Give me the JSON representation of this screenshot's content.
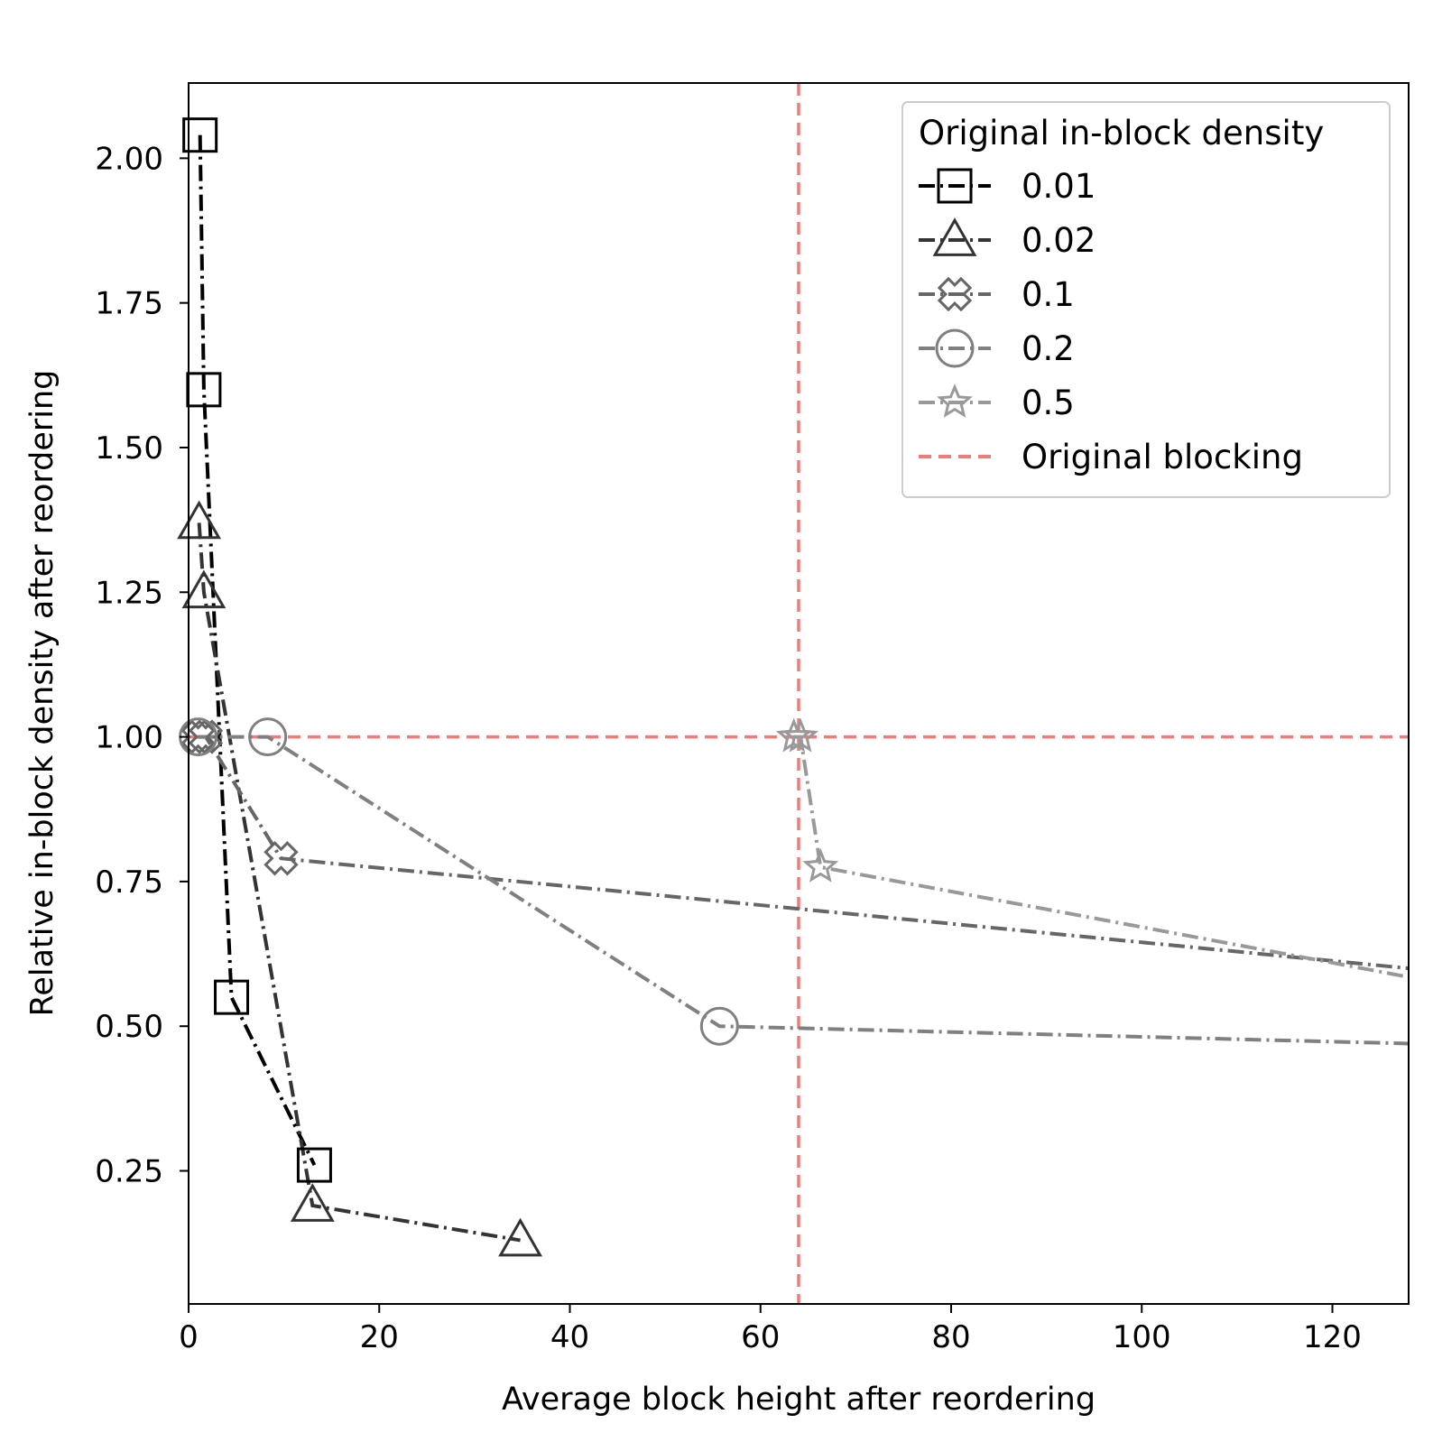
{
  "chart_data": {
    "type": "line",
    "title": "",
    "xlabel": "Average block height after reordering",
    "ylabel": "Relative in-block density after reordering",
    "xlim": [
      0,
      128
    ],
    "ylim": [
      0.02,
      2.13
    ],
    "x_ticks": [
      "0",
      "20",
      "40",
      "60",
      "80",
      "100",
      "120"
    ],
    "x_tick_values": [
      0,
      20,
      40,
      60,
      80,
      100,
      120
    ],
    "y_ticks": [
      "0.25",
      "0.50",
      "0.75",
      "1.00",
      "1.25",
      "1.50",
      "1.75",
      "2.00"
    ],
    "y_tick_values": [
      0.25,
      0.5,
      0.75,
      1.0,
      1.25,
      1.5,
      1.75,
      2.0
    ],
    "grid": false,
    "legend": {
      "title": "Original in-block density",
      "placement": "upper right"
    },
    "series": [
      {
        "name": "0.01",
        "color": "#000000",
        "marker": "square",
        "linestyle": "dashdot",
        "x": [
          1.2,
          1.6,
          4.5,
          13.2
        ],
        "y": [
          2.04,
          1.6,
          0.55,
          0.26
        ]
      },
      {
        "name": "0.02",
        "color": "#333333",
        "marker": "triangle",
        "linestyle": "dashdot",
        "x": [
          1.1,
          1.6,
          13.0,
          34.8
        ],
        "y": [
          1.37,
          1.25,
          0.19,
          0.13
        ]
      },
      {
        "name": "0.1",
        "color": "#666666",
        "marker": "cross",
        "linestyle": "dashdot",
        "x": [
          1.0,
          1.8,
          9.7,
          128.0
        ],
        "y": [
          1.0,
          1.0,
          0.79,
          0.6
        ]
      },
      {
        "name": "0.2",
        "color": "#808080",
        "marker": "circle",
        "linestyle": "dashdot",
        "x": [
          1.0,
          8.3,
          55.7,
          128.0
        ],
        "y": [
          1.0,
          1.0,
          0.5,
          0.47
        ]
      },
      {
        "name": "0.5",
        "color": "#999999",
        "marker": "star",
        "linestyle": "dashdot",
        "x": [
          63.5,
          64.2,
          66.3,
          128.0
        ],
        "y": [
          1.0,
          1.0,
          0.775,
          0.585
        ]
      }
    ],
    "reference_lines": {
      "name": "Original blocking",
      "color": "#ef7b7b",
      "linestyle": "dashed",
      "x": 64,
      "y": 1.0
    }
  }
}
